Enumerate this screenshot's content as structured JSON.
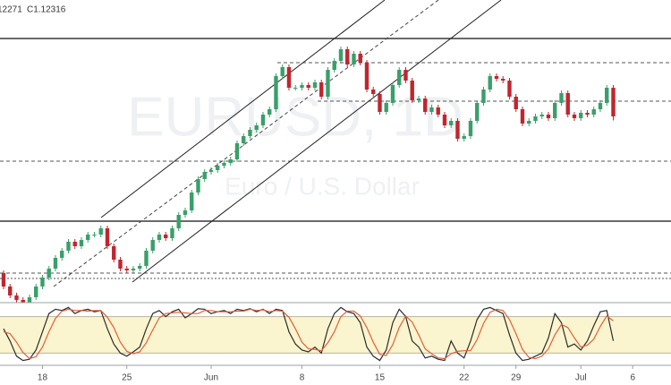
{
  "header": {
    "low": "12271",
    "close": "C1.12316"
  },
  "watermark": {
    "symbol": "EURUSD, 1D",
    "description": "Euro / U.S. Dollar"
  },
  "chart_data": [
    {
      "type": "candlestick",
      "up_color": "#3a9f6a",
      "down_color": "#c0262d",
      "xlim": [
        -0.55,
        102.9
      ],
      "ylim": [
        1.10236,
        1.13616
      ],
      "open": [
        1.10566,
        1.10416,
        1.10316,
        1.10266,
        1.10236,
        1.10296,
        1.10416,
        1.10516,
        1.10616,
        1.10736,
        1.10816,
        1.10916,
        1.10866,
        1.10936,
        1.10996,
        1.10996,
        1.11066,
        1.10866,
        1.10716,
        1.10616,
        1.10596,
        1.10616,
        1.10646,
        1.10816,
        1.10936,
        1.10996,
        1.10956,
        1.11066,
        1.11216,
        1.11266,
        1.11466,
        1.11616,
        1.11696,
        1.11716,
        1.11766,
        1.11796,
        1.11836,
        1.12016,
        1.12096,
        1.12166,
        1.12216,
        1.12336,
        1.12396,
        1.12766,
        1.12866,
        1.12636,
        1.12636,
        1.12666,
        1.12636,
        1.12696,
        1.12536,
        1.12836,
        1.12936,
        1.13066,
        1.12896,
        1.13016,
        1.12916,
        1.12616,
        1.12566,
        1.12366,
        1.12466,
        1.12666,
        1.12836,
        1.12716,
        1.12496,
        1.12516,
        1.12366,
        1.12416,
        1.12336,
        1.12216,
        1.12266,
        1.12066,
        1.12096,
        1.12266,
        1.12466,
        1.12616,
        1.12766,
        1.12736,
        1.12716,
        1.12536,
        1.12396,
        1.12236,
        1.12266,
        1.12316,
        1.12336,
        1.12296,
        1.12466,
        1.12576,
        1.12336,
        1.12296,
        1.12356,
        1.12336,
        1.12396,
        1.12466,
        1.12636
      ],
      "high": [
        1.10596,
        1.10446,
        1.10346,
        1.10296,
        1.10326,
        1.10446,
        1.10546,
        1.10646,
        1.10766,
        1.10846,
        1.10946,
        1.10946,
        1.10966,
        1.11026,
        1.11026,
        1.11096,
        1.11096,
        1.10896,
        1.10746,
        1.10646,
        1.10646,
        1.10676,
        1.10846,
        1.10966,
        1.11026,
        1.11026,
        1.11096,
        1.11246,
        1.11296,
        1.11496,
        1.11646,
        1.11726,
        1.11746,
        1.11796,
        1.11826,
        1.11866,
        1.12046,
        1.12126,
        1.12196,
        1.12246,
        1.12366,
        1.12426,
        1.12796,
        1.12896,
        1.12896,
        1.12666,
        1.12696,
        1.12696,
        1.12726,
        1.12726,
        1.12866,
        1.12966,
        1.13096,
        1.13096,
        1.13046,
        1.13046,
        1.12946,
        1.12646,
        1.12596,
        1.12496,
        1.12696,
        1.12866,
        1.12866,
        1.12746,
        1.12546,
        1.12546,
        1.12446,
        1.12446,
        1.12366,
        1.12296,
        1.12296,
        1.12126,
        1.12296,
        1.12496,
        1.12646,
        1.12796,
        1.12796,
        1.12766,
        1.12746,
        1.12566,
        1.12426,
        1.12296,
        1.12346,
        1.12366,
        1.12366,
        1.12496,
        1.12606,
        1.12606,
        1.12366,
        1.12386,
        1.12386,
        1.12426,
        1.12496,
        1.12666,
        1.12666
      ],
      "low": [
        1.10386,
        1.10286,
        1.10236,
        1.10206,
        1.10206,
        1.10266,
        1.10386,
        1.10486,
        1.10586,
        1.10706,
        1.10786,
        1.10836,
        1.10836,
        1.10906,
        1.10966,
        1.10966,
        1.10836,
        1.10686,
        1.10586,
        1.10566,
        1.10566,
        1.10586,
        1.10616,
        1.10786,
        1.10906,
        1.10926,
        1.10926,
        1.11036,
        1.11186,
        1.11236,
        1.11436,
        1.11586,
        1.11666,
        1.11686,
        1.11736,
        1.11766,
        1.11806,
        1.11986,
        1.12066,
        1.12136,
        1.12186,
        1.12306,
        1.12366,
        1.12736,
        1.12606,
        1.12606,
        1.12606,
        1.12606,
        1.12606,
        1.12506,
        1.12506,
        1.12806,
        1.12906,
        1.12866,
        1.12866,
        1.12886,
        1.12586,
        1.12536,
        1.12336,
        1.12336,
        1.12436,
        1.12636,
        1.12686,
        1.12466,
        1.12466,
        1.12336,
        1.12336,
        1.12306,
        1.12186,
        1.12186,
        1.12036,
        1.12036,
        1.12066,
        1.12236,
        1.12436,
        1.12586,
        1.12706,
        1.12686,
        1.12506,
        1.12366,
        1.12206,
        1.12206,
        1.12236,
        1.12286,
        1.12266,
        1.12266,
        1.12436,
        1.12306,
        1.12266,
        1.12266,
        1.12306,
        1.12306,
        1.12366,
        1.12436,
        1.12271
      ],
      "close": [
        1.10416,
        1.10316,
        1.10266,
        1.10236,
        1.10296,
        1.10416,
        1.10516,
        1.10616,
        1.10736,
        1.10816,
        1.10916,
        1.10866,
        1.10936,
        1.10996,
        1.10996,
        1.11066,
        1.10866,
        1.10716,
        1.10616,
        1.10596,
        1.10616,
        1.10646,
        1.10816,
        1.10936,
        1.10996,
        1.10956,
        1.11066,
        1.11216,
        1.11266,
        1.11466,
        1.11616,
        1.11696,
        1.11716,
        1.11766,
        1.11796,
        1.11836,
        1.12016,
        1.12096,
        1.12166,
        1.12216,
        1.12336,
        1.12396,
        1.12766,
        1.12866,
        1.12636,
        1.12636,
        1.12666,
        1.12636,
        1.12696,
        1.12536,
        1.12836,
        1.12936,
        1.13066,
        1.12896,
        1.13016,
        1.12916,
        1.12616,
        1.12566,
        1.12366,
        1.12466,
        1.12666,
        1.12836,
        1.12716,
        1.12496,
        1.12516,
        1.12366,
        1.12416,
        1.12336,
        1.12216,
        1.12266,
        1.12066,
        1.12096,
        1.12266,
        1.12466,
        1.12616,
        1.12766,
        1.12736,
        1.12716,
        1.12536,
        1.12396,
        1.12236,
        1.12266,
        1.12316,
        1.12336,
        1.12296,
        1.12466,
        1.12576,
        1.12336,
        1.12296,
        1.12356,
        1.12336,
        1.12396,
        1.12466,
        1.12636,
        1.12316
      ]
    },
    {
      "type": "line",
      "xlim": [
        -0.55,
        102.9
      ],
      "ylim": [
        0,
        100
      ],
      "band": [
        20,
        80
      ],
      "band_color": "#fbf5cf",
      "series": [
        {
          "color": "#2b2b2b",
          "values": [
            60,
            40,
            15,
            8,
            10,
            25,
            55,
            85,
            92,
            90,
            95,
            85,
            90,
            92,
            88,
            90,
            60,
            35,
            20,
            15,
            22,
            30,
            60,
            85,
            90,
            80,
            88,
            92,
            78,
            85,
            93,
            92,
            85,
            88,
            90,
            85,
            92,
            90,
            93,
            88,
            92,
            85,
            92,
            90,
            55,
            35,
            25,
            22,
            30,
            20,
            60,
            85,
            95,
            88,
            85,
            70,
            30,
            15,
            8,
            25,
            70,
            92,
            80,
            40,
            30,
            12,
            15,
            10,
            8,
            40,
            20,
            12,
            40,
            75,
            92,
            95,
            90,
            85,
            50,
            20,
            8,
            10,
            15,
            20,
            45,
            85,
            70,
            30,
            35,
            25,
            40,
            65,
            88,
            90,
            40
          ]
        },
        {
          "color": "#e0603a",
          "values": [
            55,
            52,
            38,
            21,
            11,
            14,
            30,
            55,
            77,
            89,
            92,
            90,
            90,
            89,
            90,
            90,
            79,
            62,
            38,
            23,
            19,
            22,
            37,
            58,
            78,
            85,
            86,
            87,
            86,
            85,
            85,
            90,
            90,
            88,
            88,
            88,
            89,
            89,
            92,
            90,
            91,
            88,
            90,
            89,
            79,
            60,
            38,
            27,
            26,
            24,
            37,
            55,
            80,
            89,
            89,
            81,
            62,
            38,
            18,
            16,
            34,
            62,
            81,
            71,
            50,
            27,
            19,
            12,
            11,
            19,
            23,
            24,
            24,
            42,
            69,
            87,
            92,
            90,
            75,
            52,
            26,
            13,
            11,
            15,
            27,
            50,
            67,
            62,
            45,
            30,
            33,
            43,
            64,
            81,
            73
          ]
        }
      ],
      "xticks": [
        {
          "value": 6,
          "label": "18"
        },
        {
          "value": 19,
          "label": "25"
        },
        {
          "value": 32,
          "label": "Jun"
        },
        {
          "value": 46,
          "label": "8"
        },
        {
          "value": 58,
          "label": "15"
        },
        {
          "value": 71,
          "label": "22"
        },
        {
          "value": 79,
          "label": "29"
        },
        {
          "value": 89,
          "label": "Jul"
        },
        {
          "value": 97,
          "label": "6"
        }
      ]
    }
  ]
}
